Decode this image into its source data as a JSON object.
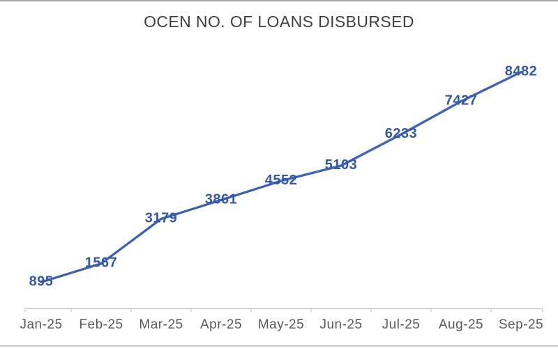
{
  "chart_data": {
    "type": "line",
    "title": "OCEN NO. OF LOANS DISBURSED",
    "categories": [
      "Jan-25",
      "Feb-25",
      "Mar-25",
      "Apr-25",
      "May-25",
      "Jun-25",
      "Jul-25",
      "Aug-25",
      "Sep-25"
    ],
    "values": [
      895,
      1567,
      3179,
      3861,
      4552,
      5103,
      6233,
      7427,
      8482
    ],
    "xlabel": "",
    "ylabel": "",
    "ylim": [
      0,
      9000
    ],
    "grid": false,
    "legend": "none",
    "y_axis_visible": false,
    "data_labels_position": "center",
    "colors": {
      "line": "#3E64B2",
      "data_label": "#3659A4",
      "title": "#3F3F3F",
      "axis": "#C9C9C9",
      "axis_label": "#595959",
      "background": "#FFFFFF"
    }
  }
}
